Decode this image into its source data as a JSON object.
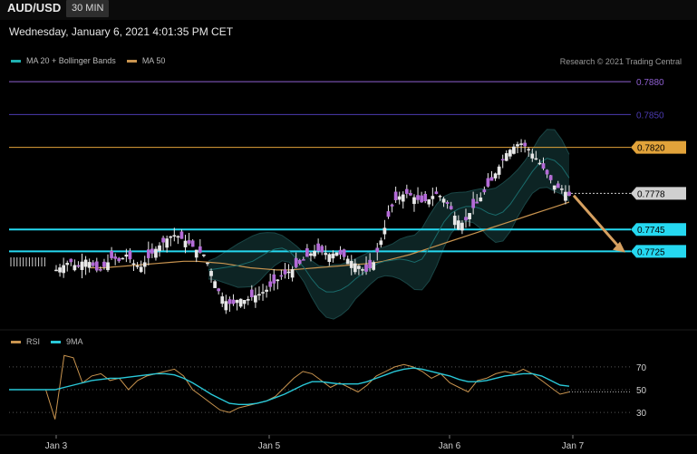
{
  "header": {
    "symbol": "AUD/USD",
    "timeframe": "30 MIN",
    "datetime": "Wednesday, January 6, 2021 4:01:35 PM CET",
    "credit": "Research © 2021 Trading Central"
  },
  "legend": {
    "ma20": "MA 20 + Bollinger Bands",
    "ma50": "MA 50",
    "ma20_color": "#1fb0b0",
    "ma50_color": "#c9944f"
  },
  "rsi_legend": {
    "rsi": "RSI",
    "ma9": "9MA",
    "rsi_color": "#c9944f",
    "ma9_color": "#29c8d8"
  },
  "chart_data": [
    {
      "type": "candlestick",
      "title": "AUD/USD 30 MIN",
      "ylim": [
        0.7655,
        0.789
      ],
      "x_ticks": [
        "Jan 3",
        "Jan 5",
        "Jan 6",
        "Jan 7"
      ],
      "levels": [
        {
          "value": 0.788,
          "label": "0.7880",
          "color": "#8e5fd0",
          "style": "line"
        },
        {
          "value": 0.785,
          "label": "0.7850",
          "color": "#4b3bb0",
          "style": "line"
        },
        {
          "value": 0.782,
          "label": "0.7820",
          "color": "#e2a33a",
          "style": "line"
        },
        {
          "value": 0.7778,
          "label": "0.7778",
          "color": "#d0d0d0",
          "style": "dotted"
        },
        {
          "value": 0.7745,
          "label": "0.7745",
          "color": "#25d8f0",
          "style": "line"
        },
        {
          "value": 0.7725,
          "label": "0.7725",
          "color": "#25d8f0",
          "style": "line"
        }
      ],
      "close_path": [
        0.7708,
        0.7712,
        0.7716,
        0.771,
        0.7718,
        0.7714,
        0.7706,
        0.7712,
        0.772,
        0.7716,
        0.7722,
        0.7714,
        0.771,
        0.7718,
        0.7726,
        0.7732,
        0.7738,
        0.774,
        0.7736,
        0.7732,
        0.7726,
        0.7722,
        0.7708,
        0.769,
        0.768,
        0.7676,
        0.7682,
        0.768,
        0.7684,
        0.7686,
        0.769,
        0.7696,
        0.7702,
        0.7706,
        0.771,
        0.7716,
        0.7722,
        0.7726,
        0.7724,
        0.7722,
        0.7724,
        0.772,
        0.7716,
        0.7712,
        0.7706,
        0.7712,
        0.773,
        0.7752,
        0.777,
        0.7776,
        0.7778,
        0.7774,
        0.777,
        0.7772,
        0.7778,
        0.7774,
        0.7766,
        0.7754,
        0.775,
        0.7762,
        0.777,
        0.778,
        0.779,
        0.7802,
        0.7814,
        0.782,
        0.7824,
        0.782,
        0.7812,
        0.7804,
        0.7794,
        0.7784,
        0.7782,
        0.7776
      ],
      "ma20_path": [
        0.7708,
        0.7709,
        0.771,
        0.7711,
        0.7712,
        0.7714,
        0.7716,
        0.772,
        0.7724,
        0.7727,
        0.7728,
        0.7725,
        0.7718,
        0.771,
        0.77,
        0.7692,
        0.7688,
        0.7688,
        0.769,
        0.7694,
        0.77,
        0.7705,
        0.771,
        0.7714,
        0.7716,
        0.7717,
        0.7718,
        0.7717,
        0.7715,
        0.7718,
        0.7728,
        0.774,
        0.7752,
        0.776,
        0.7764,
        0.7766,
        0.7766,
        0.7764,
        0.776,
        0.7758,
        0.7761,
        0.7768,
        0.7778,
        0.7788,
        0.7798,
        0.7806,
        0.781,
        0.7808,
        0.7802,
        0.7792
      ],
      "ma50_path": [
        0.771,
        0.771,
        0.7711,
        0.7712,
        0.7713,
        0.7714,
        0.7715,
        0.7716,
        0.7716,
        0.7715,
        0.7714,
        0.7712,
        0.771,
        0.7709,
        0.7708,
        0.7708,
        0.7709,
        0.771,
        0.7711,
        0.7712,
        0.7713,
        0.7714,
        0.7716,
        0.7719,
        0.7722,
        0.7726,
        0.773,
        0.7734,
        0.7738,
        0.7742,
        0.7746,
        0.775,
        0.7754,
        0.7758,
        0.7762,
        0.7766,
        0.777
      ]
    },
    {
      "type": "line",
      "title": "RSI",
      "ylim": [
        15,
        85
      ],
      "y_ticks": [
        70,
        50,
        30
      ],
      "series": [
        {
          "name": "RSI",
          "color": "#c9944f",
          "values": [
            50,
            50,
            50,
            50,
            50,
            24,
            80,
            78,
            56,
            62,
            64,
            58,
            60,
            50,
            58,
            62,
            64,
            66,
            68,
            62,
            50,
            44,
            38,
            32,
            30,
            34,
            36,
            38,
            40,
            44,
            52,
            60,
            66,
            64,
            58,
            52,
            56,
            52,
            48,
            54,
            62,
            66,
            70,
            72,
            70,
            66,
            60,
            64,
            56,
            52,
            48,
            58,
            60,
            64,
            66,
            64,
            68,
            64,
            58,
            52,
            46,
            48
          ]
        },
        {
          "name": "9MA",
          "color": "#29c8d8",
          "values": [
            50,
            50,
            50,
            50,
            50,
            50,
            52,
            54,
            56,
            58,
            59,
            60,
            60,
            61,
            62,
            63,
            64,
            64,
            63,
            60,
            56,
            51,
            46,
            42,
            38,
            37,
            37,
            38,
            40,
            43,
            46,
            50,
            54,
            57,
            57,
            56,
            55,
            55,
            55,
            57,
            60,
            63,
            66,
            68,
            69,
            68,
            66,
            64,
            62,
            59,
            57,
            57,
            58,
            60,
            62,
            63,
            64,
            64,
            62,
            58,
            54,
            53
          ]
        }
      ]
    }
  ]
}
